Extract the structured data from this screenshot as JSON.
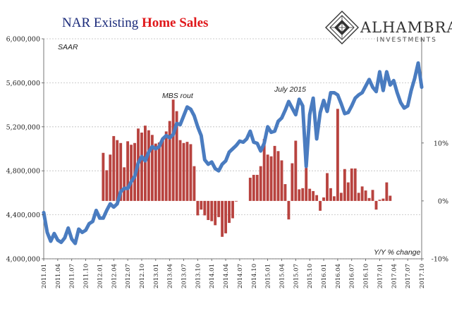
{
  "title": {
    "part1": "NAR Existing ",
    "part2": "Home Sales",
    "color1": "#1a2a7a",
    "color2": "#e0181b"
  },
  "brand": {
    "name": "ALHAMBRA",
    "sub": "INVESTMENTS"
  },
  "annotations": {
    "saar": "SAAR",
    "mbs_rout": "MBS rout",
    "july_2015": "July 2015",
    "yy_change": "Y/Y % change"
  },
  "colors": {
    "line": "#4a7cc0",
    "bar": "#b8433f",
    "grid": "#bdbdbd"
  },
  "chart_data": {
    "type": "bar+line",
    "x_tick_labels": [
      "2011.01",
      "2011.04",
      "2011.07",
      "2011.10",
      "2012.01",
      "2012.04",
      "2012.07",
      "2012.10",
      "2013.01",
      "2013.04",
      "2013.07",
      "2013.10",
      "2014.01",
      "2014.04",
      "2014.07",
      "2014.10",
      "2015.01",
      "2015.04",
      "2015.07",
      "2015.10",
      "2016.01",
      "2016.04",
      "2016.07",
      "2016.10",
      "2017.01",
      "2017.04",
      "2017.07",
      "2017.10"
    ],
    "left_axis": {
      "ylim": [
        4000000,
        6000000
      ],
      "ticks": [
        4000000,
        4400000,
        4800000,
        5200000,
        5600000,
        6000000
      ],
      "tick_labels": [
        "4,000,000",
        "4,400,000",
        "4,800,000",
        "5,200,000",
        "5,600,000",
        "6,000,000"
      ]
    },
    "right_axis": {
      "ylim": [
        -10,
        28
      ],
      "ticks": [
        -10,
        0,
        10
      ],
      "tick_labels": [
        "-10%",
        "0%",
        "10%"
      ]
    },
    "series": [
      {
        "name": "Existing Home Sales (SAAR)",
        "type": "line",
        "axis": "left",
        "values": [
          4420000,
          4240000,
          4160000,
          4230000,
          4170000,
          4150000,
          4190000,
          4280000,
          4180000,
          4140000,
          4270000,
          4240000,
          4260000,
          4320000,
          4340000,
          4440000,
          4370000,
          4370000,
          4440000,
          4500000,
          4470000,
          4500000,
          4610000,
          4640000,
          4640000,
          4700000,
          4750000,
          4870000,
          4930000,
          4890000,
          4970000,
          5020000,
          5000000,
          5020000,
          5090000,
          5120000,
          5100000,
          5130000,
          5230000,
          5220000,
          5300000,
          5380000,
          5360000,
          5300000,
          5200000,
          5120000,
          4900000,
          4860000,
          4880000,
          4820000,
          4800000,
          4860000,
          4890000,
          4970000,
          5000000,
          5030000,
          5070000,
          5060000,
          5090000,
          5160000,
          5060000,
          5050000,
          4980000,
          5050000,
          5200000,
          5150000,
          5160000,
          5250000,
          5280000,
          5350000,
          5430000,
          5370000,
          5310000,
          5450000,
          5390000,
          4840000,
          5310000,
          5460000,
          5090000,
          5330000,
          5440000,
          5340000,
          5510000,
          5510000,
          5490000,
          5410000,
          5320000,
          5330000,
          5390000,
          5460000,
          5490000,
          5510000,
          5570000,
          5630000,
          5560000,
          5520000,
          5700000,
          5530000,
          5700000,
          5580000,
          5620000,
          5510000,
          5420000,
          5370000,
          5390000,
          5530000,
          5640000,
          5780000,
          5560000
        ]
      },
      {
        "name": "Y/Y % change",
        "type": "bar",
        "axis": "right",
        "values": [
          null,
          null,
          null,
          null,
          null,
          null,
          null,
          null,
          null,
          null,
          null,
          null,
          null,
          null,
          null,
          null,
          null,
          8.3,
          5.3,
          8.0,
          11.2,
          10.5,
          10.0,
          5.8,
          10.3,
          9.7,
          10.0,
          12.5,
          11.8,
          13.0,
          12.2,
          11.4,
          9.9,
          10.1,
          10.5,
          12.0,
          13.8,
          17.5,
          15.5,
          10.5,
          10.0,
          10.2,
          9.8,
          6.0,
          -2.5,
          -1.5,
          -2.5,
          -3.3,
          -3.5,
          -4.2,
          -2.8,
          -6.2,
          -5.6,
          -3.8,
          -3.0,
          -0.1,
          null,
          null,
          null,
          4.0,
          4.5,
          4.5,
          6.0,
          10.7,
          8.0,
          7.7,
          9.5,
          8.6,
          7.0,
          2.9,
          -3.2,
          6.5,
          10.4,
          2.0,
          2.2,
          5.7,
          2.1,
          1.7,
          1.0,
          -1.7,
          0.6,
          4.8,
          2.2,
          0.8,
          15.9,
          1.4,
          5.5,
          3.2,
          5.6,
          5.6,
          1.4,
          2.5,
          1.8,
          0.5,
          1.9,
          -1.5,
          0.2,
          0.4,
          3.2,
          0.9,
          null,
          null,
          null,
          null,
          null,
          null,
          null,
          null,
          null
        ]
      }
    ]
  }
}
